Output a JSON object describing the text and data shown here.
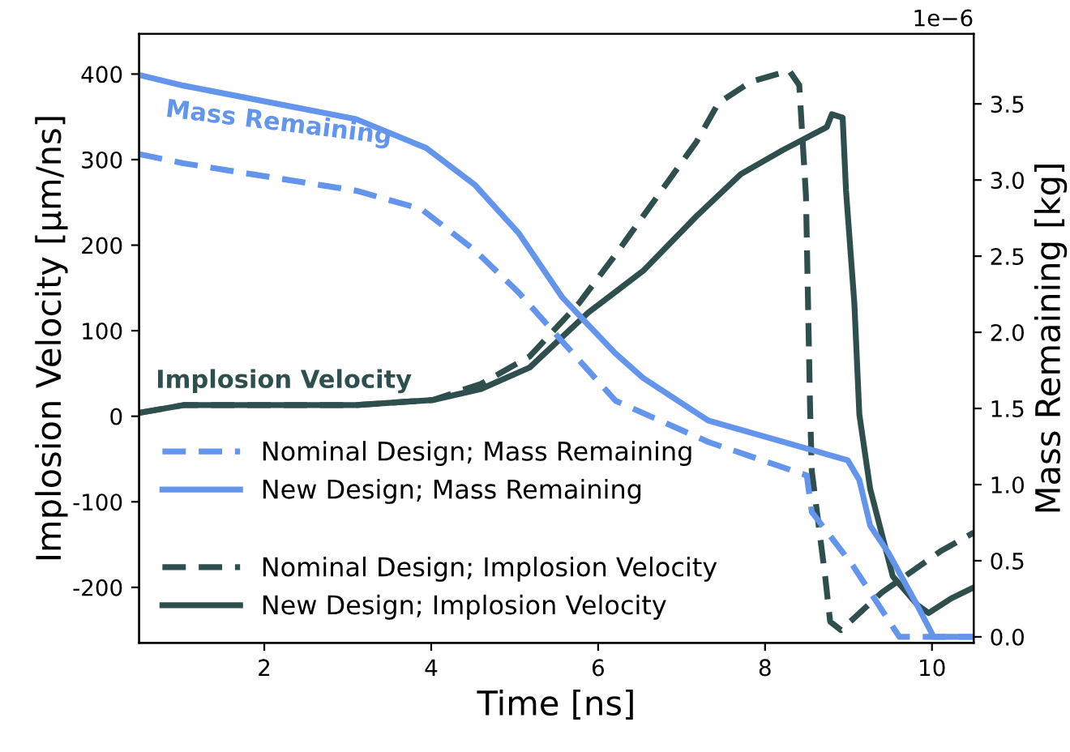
{
  "chart_data": {
    "type": "line",
    "xlabel": "Time [ns]",
    "ylabel": "Implosion Velocity [μm/ns]",
    "y2label": "Mass Remaining [kg]",
    "xlim": [
      0.5,
      10.5
    ],
    "xticks": [
      2,
      4,
      6,
      8,
      10
    ],
    "ylim": [
      -265,
      447
    ],
    "yticks": [
      -200,
      -100,
      0,
      100,
      200,
      300,
      400
    ],
    "y2lim": [
      -0.04,
      3.96
    ],
    "y2ticks": [
      {
        "value": 0,
        "label": "0.0"
      },
      {
        "value": 0.5,
        "label": "0.5"
      },
      {
        "value": 1,
        "label": "1.0"
      },
      {
        "value": 1.5,
        "label": "1.5"
      },
      {
        "value": 2,
        "label": "2.0"
      },
      {
        "value": 2.5,
        "label": "2.5"
      },
      {
        "value": 3,
        "label": "3.0"
      },
      {
        "value": 3.5,
        "label": "3.5"
      }
    ],
    "grid": false,
    "legend": "bottom left",
    "marker": "none",
    "annotations": [
      "Mass Remaining",
      "Implosion Velocity",
      "1e−6"
    ],
    "series": [
      {
        "name": "Nominal Design; Mass Remaining",
        "color": "#6495ed",
        "axis": "y2",
        "line_style": "dashed",
        "x": [
          0.5,
          1.03,
          3.1,
          3.88,
          4.52,
          5.05,
          5.57,
          6.21,
          6.62,
          7.32,
          8.5,
          8.56,
          9.05,
          9.61,
          10.5
        ],
        "values": [
          3.17,
          3.11,
          2.93,
          2.81,
          2.54,
          2.26,
          1.94,
          1.55,
          1.45,
          1.28,
          1.06,
          0.82,
          0.47,
          0.0,
          0.0
        ]
      },
      {
        "name": "New Design; Mass Remaining",
        "color": "#6495ed",
        "axis": "y2",
        "line_style": "solid",
        "x": [
          0.5,
          1.03,
          3.1,
          3.94,
          4.52,
          5.05,
          5.57,
          5.88,
          6.21,
          6.54,
          7.32,
          8.99,
          9.13,
          9.26,
          9.48,
          9.83,
          10.02,
          10.5
        ],
        "values": [
          3.69,
          3.62,
          3.4,
          3.21,
          2.97,
          2.65,
          2.23,
          2.05,
          1.86,
          1.7,
          1.42,
          1.16,
          1.03,
          0.73,
          0.55,
          0.2,
          0.0,
          0.0
        ]
      },
      {
        "name": "Nominal Design; Implosion Velocity",
        "color": "#2f4f4f",
        "line_style": "dashed",
        "x": [
          0.5,
          1.03,
          3.1,
          4.02,
          4.6,
          5.18,
          5.77,
          6.21,
          6.54,
          7.18,
          7.44,
          7.83,
          8.29,
          8.41,
          8.49,
          8.54,
          8.56,
          8.72,
          8.78,
          8.91,
          9.4,
          10.1,
          10.5
        ],
        "values": [
          4,
          13,
          13,
          19,
          38,
          70,
          132,
          189,
          234,
          321,
          366,
          391,
          404,
          387,
          258,
          8,
          -64,
          -187,
          -240,
          -250,
          -206,
          -158,
          -136
        ]
      },
      {
        "name": "New Design; Implosion Velocity",
        "color": "#2f4f4f",
        "line_style": "solid",
        "x": [
          0.5,
          1.03,
          3.1,
          4.02,
          4.6,
          5.18,
          5.88,
          6.54,
          7.18,
          7.71,
          8.21,
          8.74,
          8.8,
          8.93,
          8.97,
          9.07,
          9.13,
          9.26,
          9.53,
          9.83,
          9.96,
          10.23,
          10.5
        ],
        "values": [
          4,
          13,
          13,
          19,
          32,
          57,
          121,
          170,
          234,
          283,
          311,
          338,
          353,
          349,
          264,
          132,
          2,
          -85,
          -187,
          -221,
          -230,
          -213,
          -200
        ]
      }
    ]
  }
}
